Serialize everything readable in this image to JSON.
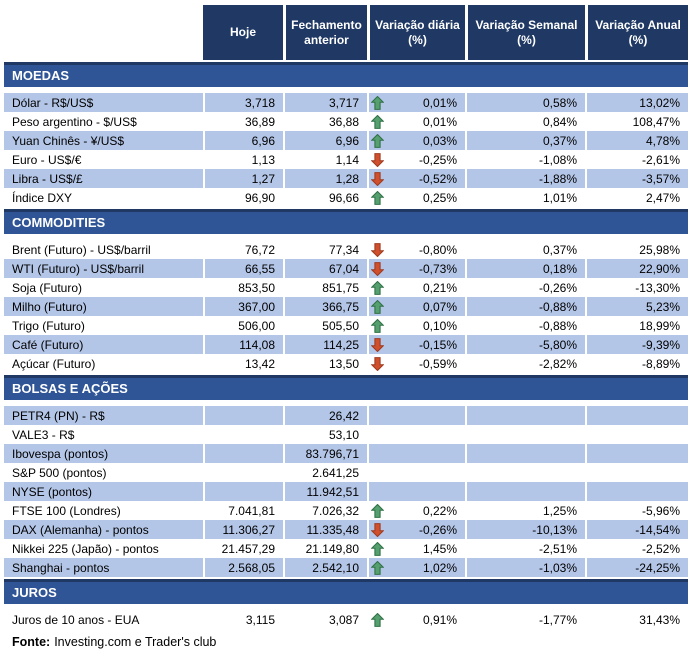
{
  "chart_data": {
    "type": "table",
    "columns": [
      "Hoje",
      "Fechamento anterior",
      "Variação diária (%)",
      "Variação Semanal (%)",
      "Variação Anual (%)"
    ],
    "sections": [
      {
        "title": "MOEDAS",
        "first_row_shaded": true,
        "rows": [
          {
            "label": "Dólar - R$/US$",
            "hoje": "3,718",
            "fechamento_anterior": "3,717",
            "trend": "up",
            "variacao_diaria": "0,01%",
            "variacao_semanal": "0,58%",
            "variacao_anual": "13,02%"
          },
          {
            "label": "Peso argentino - $/US$",
            "hoje": "36,89",
            "fechamento_anterior": "36,88",
            "trend": "up",
            "variacao_diaria": "0,01%",
            "variacao_semanal": "0,84%",
            "variacao_anual": "108,47%"
          },
          {
            "label": "Yuan Chinês - ¥/US$",
            "hoje": "6,96",
            "fechamento_anterior": "6,96",
            "trend": "up",
            "variacao_diaria": "0,03%",
            "variacao_semanal": "0,37%",
            "variacao_anual": "4,78%"
          },
          {
            "label": "Euro - US$/€",
            "hoje": "1,13",
            "fechamento_anterior": "1,14",
            "trend": "down",
            "variacao_diaria": "-0,25%",
            "variacao_semanal": "-1,08%",
            "variacao_anual": "-2,61%"
          },
          {
            "label": "Libra - US$/£",
            "hoje": "1,27",
            "fechamento_anterior": "1,28",
            "trend": "down",
            "variacao_diaria": "-0,52%",
            "variacao_semanal": "-1,88%",
            "variacao_anual": "-3,57%"
          },
          {
            "label": "Índice DXY",
            "hoje": "96,90",
            "fechamento_anterior": "96,66",
            "trend": "up",
            "variacao_diaria": "0,25%",
            "variacao_semanal": "1,01%",
            "variacao_anual": "2,47%"
          }
        ]
      },
      {
        "title": "COMMODITIES",
        "first_row_shaded": false,
        "rows": [
          {
            "label": "Brent (Futuro) - US$/barril",
            "hoje": "76,72",
            "fechamento_anterior": "77,34",
            "trend": "down",
            "variacao_diaria": "-0,80%",
            "variacao_semanal": "0,37%",
            "variacao_anual": "25,98%"
          },
          {
            "label": "WTI (Futuro) - US$/barril",
            "hoje": "66,55",
            "fechamento_anterior": "67,04",
            "trend": "down",
            "variacao_diaria": "-0,73%",
            "variacao_semanal": "0,18%",
            "variacao_anual": "22,90%"
          },
          {
            "label": "Soja (Futuro)",
            "hoje": "853,50",
            "fechamento_anterior": "851,75",
            "trend": "up",
            "variacao_diaria": "0,21%",
            "variacao_semanal": "-0,26%",
            "variacao_anual": "-13,30%"
          },
          {
            "label": "Milho (Futuro)",
            "hoje": "367,00",
            "fechamento_anterior": "366,75",
            "trend": "up",
            "variacao_diaria": "0,07%",
            "variacao_semanal": "-0,88%",
            "variacao_anual": "5,23%"
          },
          {
            "label": "Trigo (Futuro)",
            "hoje": "506,00",
            "fechamento_anterior": "505,50",
            "trend": "up",
            "variacao_diaria": "0,10%",
            "variacao_semanal": "-0,88%",
            "variacao_anual": "18,99%"
          },
          {
            "label": "Café (Futuro)",
            "hoje": "114,08",
            "fechamento_anterior": "114,25",
            "trend": "down",
            "variacao_diaria": "-0,15%",
            "variacao_semanal": "-5,80%",
            "variacao_anual": "-9,39%"
          },
          {
            "label": "Açúcar (Futuro)",
            "hoje": "13,42",
            "fechamento_anterior": "13,50",
            "trend": "down",
            "variacao_diaria": "-0,59%",
            "variacao_semanal": "-2,82%",
            "variacao_anual": "-8,89%"
          }
        ]
      },
      {
        "title": "BOLSAS E AÇÕES",
        "first_row_shaded": true,
        "rows": [
          {
            "label": "PETR4 (PN) - R$",
            "hoje": "",
            "fechamento_anterior": "26,42",
            "trend": "none",
            "variacao_diaria": "",
            "variacao_semanal": "",
            "variacao_anual": ""
          },
          {
            "label": "VALE3 - R$",
            "hoje": "",
            "fechamento_anterior": "53,10",
            "trend": "none",
            "variacao_diaria": "",
            "variacao_semanal": "",
            "variacao_anual": ""
          },
          {
            "label": "Ibovespa (pontos)",
            "hoje": "",
            "fechamento_anterior": "83.796,71",
            "trend": "none",
            "variacao_diaria": "",
            "variacao_semanal": "",
            "variacao_anual": ""
          },
          {
            "label": "S&P 500 (pontos)",
            "hoje": "",
            "fechamento_anterior": "2.641,25",
            "trend": "none",
            "variacao_diaria": "",
            "variacao_semanal": "",
            "variacao_anual": ""
          },
          {
            "label": "NYSE (pontos)",
            "hoje": "",
            "fechamento_anterior": "11.942,51",
            "trend": "none",
            "variacao_diaria": "",
            "variacao_semanal": "",
            "variacao_anual": ""
          },
          {
            "label": "FTSE 100 (Londres)",
            "hoje": "7.041,81",
            "fechamento_anterior": "7.026,32",
            "trend": "up",
            "variacao_diaria": "0,22%",
            "variacao_semanal": "1,25%",
            "variacao_anual": "-5,96%"
          },
          {
            "label": "DAX (Alemanha) - pontos",
            "hoje": "11.306,27",
            "fechamento_anterior": "11.335,48",
            "trend": "down",
            "variacao_diaria": "-0,26%",
            "variacao_semanal": "-10,13%",
            "variacao_anual": "-14,54%"
          },
          {
            "label": "Nikkei 225 (Japão) - pontos",
            "hoje": "21.457,29",
            "fechamento_anterior": "21.149,80",
            "trend": "up",
            "variacao_diaria": "1,45%",
            "variacao_semanal": "-2,51%",
            "variacao_anual": "-2,52%"
          },
          {
            "label": "Shanghai - pontos",
            "hoje": "2.568,05",
            "fechamento_anterior": "2.542,10",
            "trend": "up",
            "variacao_diaria": "1,02%",
            "variacao_semanal": "-1,03%",
            "variacao_anual": "-24,25%"
          }
        ]
      },
      {
        "title": "JUROS",
        "first_row_shaded": false,
        "rows": [
          {
            "label": "Juros de 10 anos - EUA",
            "hoje": "3,115",
            "fechamento_anterior": "3,087",
            "trend": "up",
            "variacao_diaria": "0,91%",
            "variacao_semanal": "-1,77%",
            "variacao_anual": "31,43%"
          }
        ]
      }
    ]
  },
  "footer": {
    "label": "Fonte:",
    "text": "Investing.com e Trader's club"
  },
  "icons": {
    "up": "green-up-arrow",
    "down": "red-down-arrow"
  },
  "colors": {
    "header_bg": "#1F3864",
    "section_band_bg": "#2F5597",
    "row_stripe": "#B4C6E7",
    "up_arrow": "#55A06E",
    "down_arrow": "#D0502D"
  }
}
